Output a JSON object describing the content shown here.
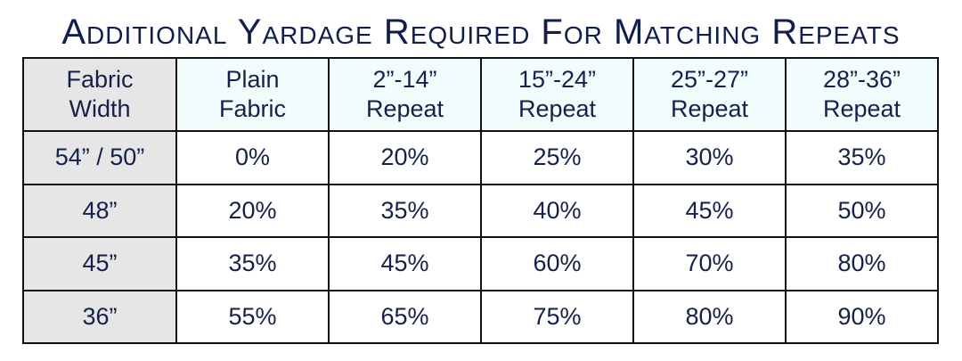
{
  "title": "Additional Yardage Required For Matching Repeats",
  "table": {
    "headers": [
      [
        "Fabric",
        "Width"
      ],
      [
        "Plain",
        "Fabric"
      ],
      [
        "2”-14”",
        "Repeat"
      ],
      [
        "15”-24”",
        "Repeat"
      ],
      [
        "25”-27”",
        "Repeat"
      ],
      [
        "28”-36”",
        "Repeat"
      ]
    ],
    "rows": [
      [
        "54” / 50”",
        "0%",
        "20%",
        "25%",
        "30%",
        "35%"
      ],
      [
        "48”",
        "20%",
        "35%",
        "40%",
        "45%",
        "50%"
      ],
      [
        "45”",
        "35%",
        "45%",
        "60%",
        "70%",
        "80%"
      ],
      [
        "36”",
        "55%",
        "65%",
        "75%",
        "80%",
        "90%"
      ]
    ]
  },
  "colors": {
    "text": "#15204d",
    "header_bg": "#f0fdfc",
    "first_col_bg": "#e6e6e6"
  }
}
